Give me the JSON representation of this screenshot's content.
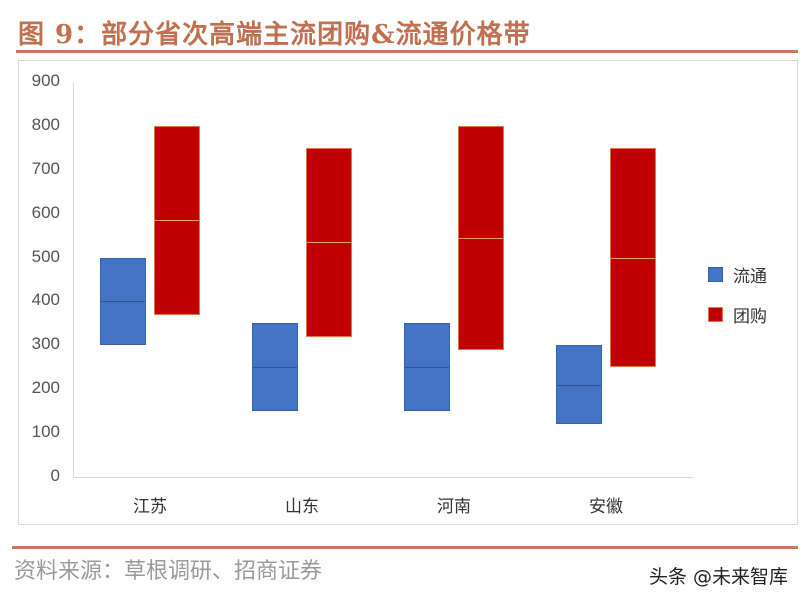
{
  "header": {
    "title": "图 9：部分省次高端主流团购&流通价格带"
  },
  "footer": {
    "source": "资料来源：草根调研、招商证券",
    "watermark": "头条 @未来智库"
  },
  "legend": [
    {
      "label": "流通",
      "color": "#4472c4"
    },
    {
      "label": "团购",
      "color": "#c00000"
    }
  ],
  "yaxis": {
    "ticks": [
      "900",
      "800",
      "700",
      "600",
      "500",
      "400",
      "300",
      "200",
      "100",
      "0"
    ]
  },
  "xaxis": {
    "categories": [
      "江苏",
      "山东",
      "河南",
      "安徽"
    ]
  },
  "chart_data": {
    "type": "bar",
    "subtype": "floating-range (box)",
    "title": "部分省次高端主流团购&流通价格带",
    "categories": [
      "江苏",
      "山东",
      "河南",
      "安徽"
    ],
    "series": [
      {
        "name": "流通",
        "color": "#4472c4",
        "low": [
          300,
          150,
          150,
          120
        ],
        "mid": [
          400,
          250,
          250,
          210
        ],
        "high": [
          500,
          350,
          350,
          300
        ]
      },
      {
        "name": "团购",
        "color": "#c00000",
        "low": [
          370,
          320,
          290,
          250
        ],
        "mid": [
          585,
          535,
          545,
          500
        ],
        "high": [
          800,
          750,
          800,
          750
        ]
      }
    ],
    "xlabel": "",
    "ylabel": "",
    "ylim": [
      0,
      900
    ],
    "yticks": [
      0,
      100,
      200,
      300,
      400,
      500,
      600,
      700,
      800,
      900
    ],
    "grid": false,
    "legend_position": "right"
  }
}
